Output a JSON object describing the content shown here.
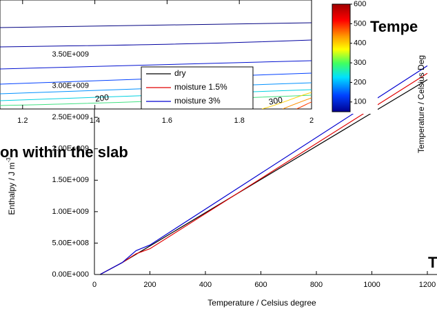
{
  "chart_data": [
    {
      "type": "line",
      "x_label": "Temperature / Celsius degree",
      "y_label": "Enthalpy / J m",
      "y_label_sup": "-3",
      "xlim": [
        0,
        1200
      ],
      "xticks": [
        0,
        200,
        400,
        600,
        800,
        1000,
        1200
      ],
      "ylim": [
        0,
        3500000000
      ],
      "yticks": [
        {
          "value": 0,
          "label": "0.00E+000"
        },
        {
          "value": 500000000,
          "label": "5.00E+008"
        },
        {
          "value": 1000000000,
          "label": "1.00E+009"
        },
        {
          "value": 1500000000,
          "label": "1.50E+009"
        },
        {
          "value": 2000000000,
          "label": "2.00E+009"
        },
        {
          "value": 2500000000,
          "label": "2.50E+009"
        },
        {
          "value": 3000000000,
          "label": "3.00E+009"
        },
        {
          "value": 3500000000,
          "label": "3.50E+009"
        }
      ],
      "series": [
        {
          "name": "dry",
          "color": "#000000",
          "x": [
            20,
            100,
            1200
          ],
          "values": [
            0,
            190000000,
            3100000000
          ]
        },
        {
          "name": "moisture 1.5%",
          "color": "#e00000",
          "x": [
            20,
            100,
            150,
            200,
            1200
          ],
          "values": [
            0,
            190000000,
            330000000,
            410000000,
            3200000000
          ]
        },
        {
          "name": "moisture 3%",
          "color": "#0000d0",
          "x": [
            20,
            100,
            150,
            200,
            1200
          ],
          "values": [
            0,
            190000000,
            380000000,
            470000000,
            3320000000
          ]
        }
      ]
    },
    {
      "type": "contour",
      "xlim": [
        1.0,
        2.0
      ],
      "xticks": [
        1.2,
        1.4,
        1.6,
        1.8,
        2
      ],
      "levels": [
        200,
        300
      ],
      "clim": [
        50,
        600
      ],
      "cticks": [
        100,
        200,
        300,
        400,
        500,
        600
      ]
    }
  ],
  "fragments": {
    "title_right": "Tempe",
    "title_left": "on within the slab",
    "axis_right": "Temperature / Celsius Deg",
    "corner": "T"
  }
}
